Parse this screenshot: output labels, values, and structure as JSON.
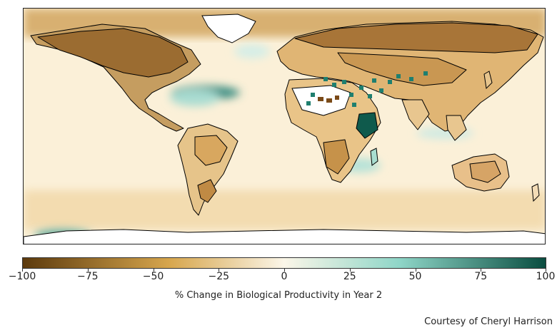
{
  "colorbar": {
    "min": -100,
    "max": 100,
    "tick_labels": [
      "−100",
      "−75",
      "−50",
      "−25",
      "0",
      "25",
      "50",
      "75",
      "100"
    ],
    "tick_values": [
      -100,
      -75,
      -50,
      -25,
      0,
      25,
      50,
      75,
      100
    ],
    "title": "% Change in Biological Productivity in Year 2",
    "colors": {
      "low": "#5c3a0d",
      "mid_low": "#d7a64d",
      "neutral": "#fbf6e8",
      "mid_high": "#8fd6c8",
      "high": "#0a4d40"
    }
  },
  "credit": "Courtesy of Cheryl Harrison",
  "map": {
    "projection": "equirectangular",
    "ocean_color": "#fbf1dc",
    "no_data_color": "#ffffff",
    "coastline_color": "#000000"
  }
}
